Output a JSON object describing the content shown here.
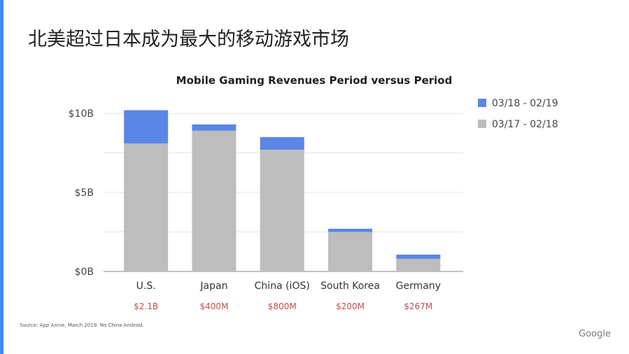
{
  "slide": {
    "title": "北美超过日本成为最大的移动游戏市场",
    "source": "Source: App Annie, March 2019. No China Android.",
    "brand": "Google"
  },
  "colors": {
    "accent_rule": "#4285f4",
    "series_recent": "#5b86e5",
    "series_prior": "#bdbdbd",
    "annotation": "#c0504d",
    "grid": "#e6e6e6",
    "axis": "#9e9e9e"
  },
  "chart_data": {
    "type": "bar",
    "stacked": true,
    "title": "Mobile Gaming Revenues Period versus Period",
    "xlabel": "",
    "ylabel": "",
    "ylim": [
      0,
      10
    ],
    "y_ticks": [
      {
        "value": 0,
        "label": "$0B"
      },
      {
        "value": 5,
        "label": "$5B"
      },
      {
        "value": 10,
        "label": "$10B"
      }
    ],
    "grid": true,
    "legend_position": "top-right",
    "categories": [
      "U.S.",
      "Japan",
      "China (iOS)",
      "South Korea",
      "Germany"
    ],
    "series": [
      {
        "name": "03/17 - 02/18",
        "values": [
          8.1,
          8.9,
          7.7,
          2.5,
          0.8
        ]
      },
      {
        "name": "03/18 - 02/19",
        "values": [
          2.1,
          0.4,
          0.8,
          0.2,
          0.267
        ]
      }
    ],
    "legend_order": [
      "03/18 - 02/19",
      "03/17 - 02/18"
    ],
    "annotations": [
      "$2.1B",
      "$400M",
      "$800M",
      "$200M",
      "$267M"
    ]
  }
}
